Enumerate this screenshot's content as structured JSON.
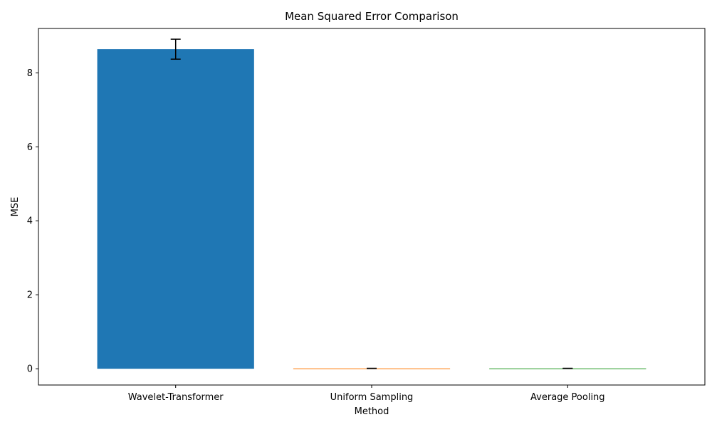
{
  "chart_data": {
    "type": "bar",
    "title": "Mean Squared Error Comparison",
    "xlabel": "Method",
    "ylabel": "MSE",
    "categories": [
      "Wavelet-Transformer",
      "Uniform Sampling",
      "Average Pooling"
    ],
    "values": [
      8.64,
      0.01,
      0.01
    ],
    "errors": [
      0.27,
      0.0,
      0.0
    ],
    "colors": [
      "#1f77b4",
      "#ff7f0e",
      "#2ca02c"
    ],
    "ylim": [
      -0.44,
      9.2
    ],
    "yticks": [
      0,
      2,
      4,
      6,
      8
    ],
    "grid": false,
    "legend": "none"
  }
}
